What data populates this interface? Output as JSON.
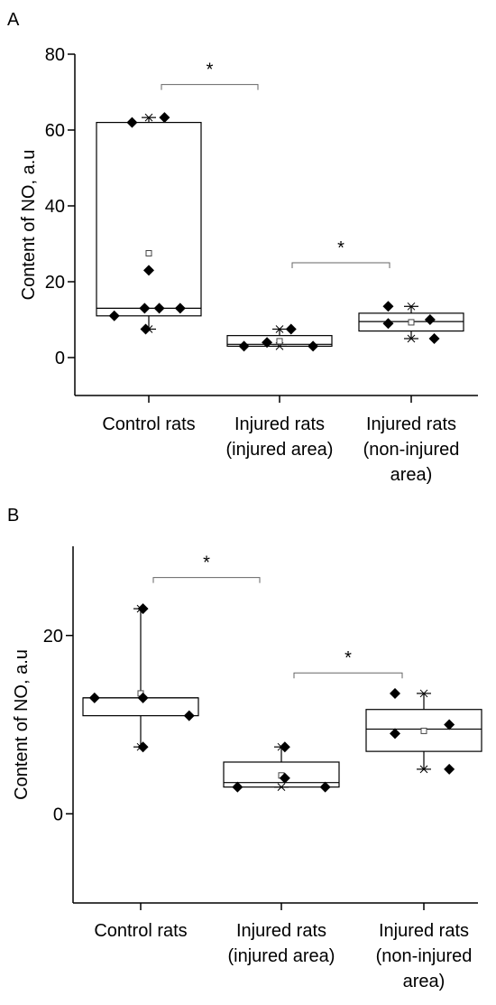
{
  "chart_data": [
    {
      "panel_label": "A",
      "type": "box",
      "ylabel": "Content of NO, a.u",
      "ylim": [
        -10,
        80
      ],
      "yticks": [
        0,
        20,
        40,
        60,
        80
      ],
      "categories": [
        {
          "label_lines": [
            "Control rats"
          ]
        },
        {
          "label_lines": [
            "Injured rats",
            "(injured area)"
          ]
        },
        {
          "label_lines": [
            "Injured rats",
            "(non-injured",
            "area)"
          ]
        }
      ],
      "boxes": [
        {
          "q1": 11,
          "median": 13,
          "q3": 62,
          "mean": 27.5,
          "min": 7.5,
          "max": 63.3,
          "points": [
            [
              -0.33,
              11
            ],
            [
              0.1,
              13
            ],
            [
              0.3,
              13
            ],
            [
              -0.03,
              7.5
            ],
            [
              -0.04,
              13
            ],
            [
              0.0,
              23
            ],
            [
              -0.16,
              62
            ],
            [
              0.15,
              63.3
            ]
          ]
        },
        {
          "q1": 3,
          "median": 3.5,
          "q3": 5.8,
          "mean": 4.3,
          "min": 3,
          "max": 7.5,
          "points": [
            [
              -0.34,
              3
            ],
            [
              -0.12,
              4
            ],
            [
              0.11,
              7.5
            ],
            [
              0.32,
              3
            ]
          ]
        },
        {
          "q1": 7,
          "median": 9.5,
          "q3": 11.7,
          "mean": 9.3,
          "min": 5,
          "max": 13.5,
          "points": [
            [
              -0.22,
              13.5
            ],
            [
              -0.22,
              9
            ],
            [
              0.18,
              10
            ],
            [
              0.22,
              5
            ]
          ]
        }
      ],
      "significance": [
        {
          "from": 0,
          "to": 1,
          "label": "*",
          "y": 72
        },
        {
          "from": 1,
          "to": 2,
          "label": "*",
          "y": 25
        }
      ]
    },
    {
      "panel_label": "B",
      "type": "box",
      "ylabel": "Content of NO, a.u",
      "ylim": [
        -10,
        30
      ],
      "yticks": [
        0,
        20
      ],
      "categories": [
        {
          "label_lines": [
            "Control rats"
          ]
        },
        {
          "label_lines": [
            "Injured rats",
            "(injured area)"
          ]
        },
        {
          "label_lines": [
            "Injured rats",
            "(non-injured",
            "area)"
          ]
        }
      ],
      "boxes": [
        {
          "q1": 11,
          "median": 13,
          "q3": 13,
          "mean": 13.5,
          "min": 7.5,
          "max": 23,
          "points": [
            [
              -0.4,
              13
            ],
            [
              0.02,
              13
            ],
            [
              0.42,
              11
            ],
            [
              0.02,
              7.5
            ],
            [
              0.02,
              23
            ]
          ]
        },
        {
          "q1": 3,
          "median": 3.5,
          "q3": 5.8,
          "mean": 4.3,
          "min": 3,
          "max": 7.5,
          "points": [
            [
              -0.38,
              3
            ],
            [
              0.03,
              4
            ],
            [
              0.03,
              7.5
            ],
            [
              0.38,
              3
            ]
          ]
        },
        {
          "q1": 7,
          "median": 9.5,
          "q3": 11.7,
          "mean": 9.3,
          "min": 5,
          "max": 13.5,
          "points": [
            [
              -0.25,
              13.5
            ],
            [
              -0.25,
              9
            ],
            [
              0.22,
              10
            ],
            [
              0.22,
              5
            ]
          ]
        }
      ],
      "significance": [
        {
          "from": 0,
          "to": 1,
          "label": "*",
          "y": 26.5
        },
        {
          "from": 1,
          "to": 2,
          "label": "*",
          "y": 15.8
        }
      ]
    }
  ]
}
